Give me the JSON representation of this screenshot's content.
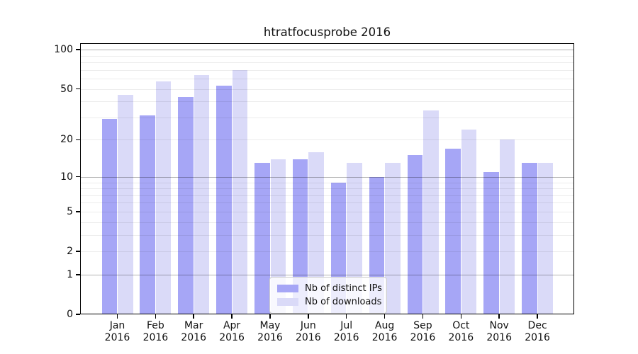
{
  "chart_data": {
    "type": "bar",
    "title": "htratfocusprobe 2016",
    "categories": [
      "Jan",
      "Feb",
      "Mar",
      "Apr",
      "May",
      "Jun",
      "Jul",
      "Aug",
      "Sep",
      "Oct",
      "Nov",
      "Dec"
    ],
    "x_tick_line2": "2016",
    "series": [
      {
        "key": "distinct-ips",
        "name": "Nb of distinct IPs",
        "color": "#a6a6f6",
        "values": [
          29,
          31,
          43,
          53,
          13,
          14,
          9,
          10,
          15,
          17,
          11,
          13
        ]
      },
      {
        "key": "downloads",
        "name": "Nb of downloads",
        "color": "#dadaf8",
        "values": [
          45,
          57,
          64,
          70,
          14,
          16,
          13,
          13,
          34,
          24,
          20,
          13
        ]
      }
    ],
    "yscale": "log1p",
    "ylim": [
      0,
      112
    ],
    "ytick_values": [
      0,
      1,
      2,
      5,
      10,
      20,
      50,
      100
    ],
    "major_gridlines": [
      1,
      10,
      100
    ],
    "minor_gridlines": [
      2,
      3,
      4,
      5,
      6,
      7,
      8,
      9,
      20,
      30,
      40,
      50,
      60,
      70,
      80,
      90
    ],
    "grid": true,
    "legend": {
      "position": "lower center",
      "entries": [
        "Nb of distinct IPs",
        "Nb of downloads"
      ]
    }
  }
}
